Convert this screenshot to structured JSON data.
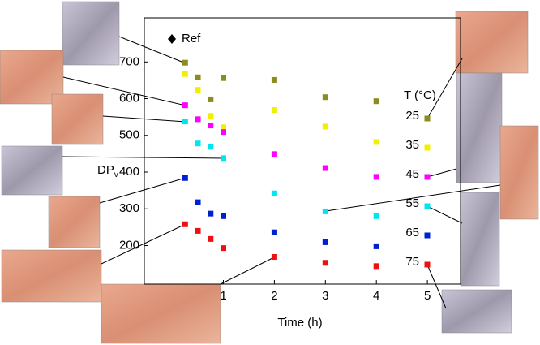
{
  "chart_data": {
    "type": "scatter",
    "x_label": "Time (h)",
    "y_label": "DP",
    "y_label_sub": "v",
    "legend_title": "T (°C)",
    "ref_label": "Ref",
    "xlim": [
      -0.55,
      5.65
    ],
    "ylim": [
      95,
      820
    ],
    "xticks": [
      1,
      2,
      3,
      4,
      5
    ],
    "yticks": [
      200,
      300,
      400,
      500,
      600,
      700
    ],
    "x": [
      0.25,
      0.5,
      0.75,
      1,
      2,
      3,
      4
    ],
    "series": [
      {
        "name": "25",
        "color": "#8b8b1e",
        "values": [
          698,
          658,
          598,
          656,
          651,
          604,
          593
        ]
      },
      {
        "name": "35",
        "color": "#f0f000",
        "values": [
          667,
          624,
          553,
          522,
          569,
          524,
          482
        ]
      },
      {
        "name": "45",
        "color": "#ff00ff",
        "values": [
          582,
          544,
          527,
          509,
          449,
          411,
          387
        ]
      },
      {
        "name": "55",
        "color": "#00e6f0",
        "values": [
          538,
          478,
          469,
          438,
          342,
          293,
          280
        ]
      },
      {
        "name": "65",
        "color": "#0020d0",
        "values": [
          384,
          318,
          287,
          280,
          236,
          209,
          198
        ]
      },
      {
        "name": "75",
        "color": "#ee1010",
        "values": [
          258,
          240,
          218,
          193,
          169,
          153,
          144
        ]
      }
    ]
  }
}
